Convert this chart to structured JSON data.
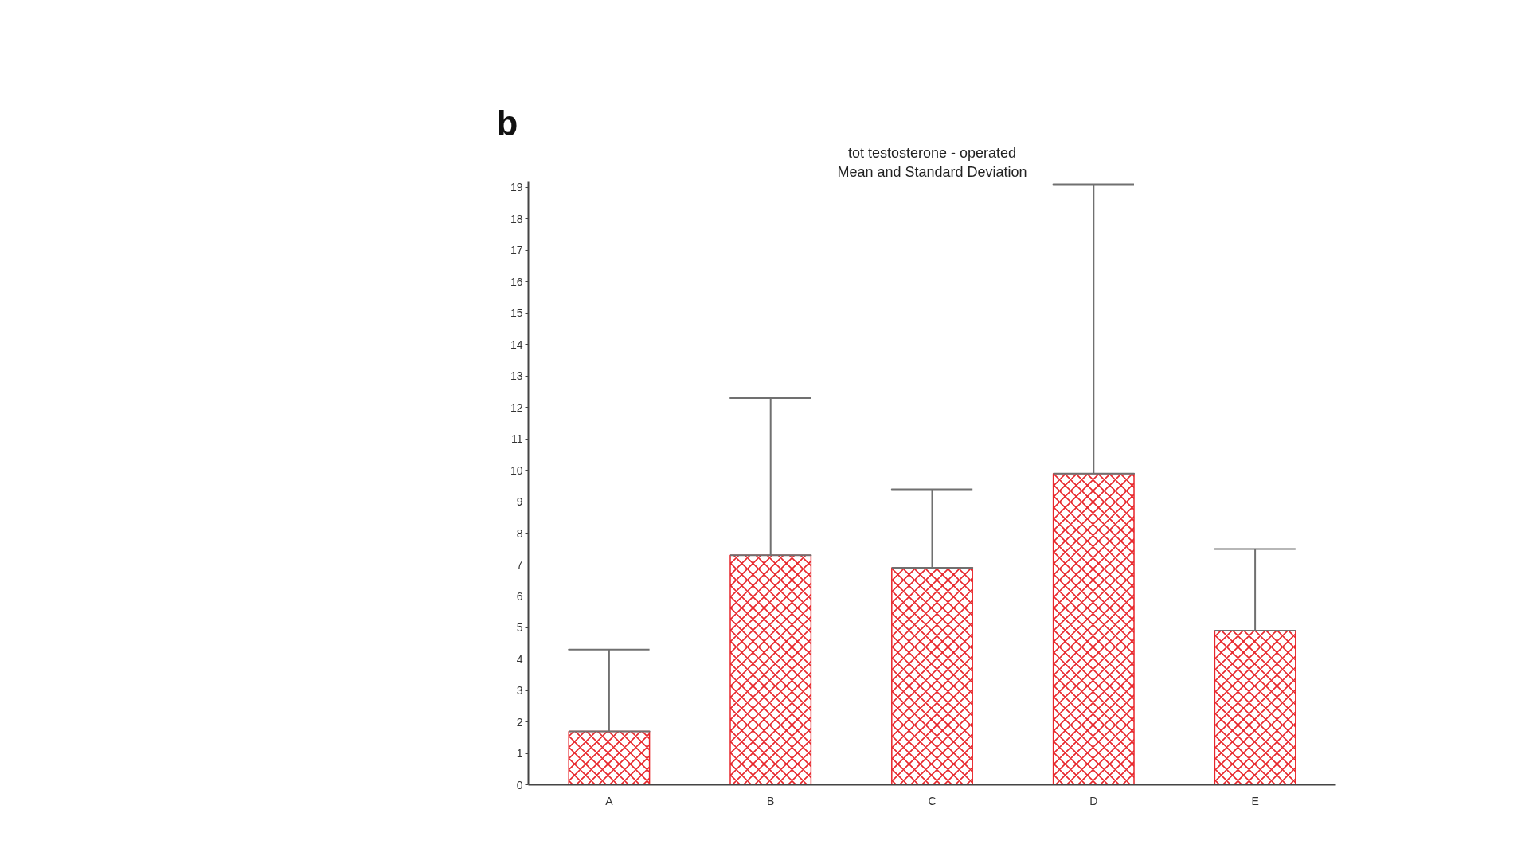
{
  "chart_data": {
    "type": "bar",
    "title": "tot testosterone - operated",
    "subtitle": "Mean and Standard Deviation",
    "annotations": [
      "b"
    ],
    "categories": [
      "A",
      "B",
      "C",
      "D",
      "E"
    ],
    "values": [
      1.7,
      7.3,
      6.9,
      9.9,
      4.9
    ],
    "errors": [
      [
        1.7,
        4.3
      ],
      [
        7.3,
        12.3
      ],
      [
        6.9,
        9.4
      ],
      [
        9.9,
        19.1
      ],
      [
        4.9,
        7.5
      ]
    ],
    "color": "#e8262b",
    "ylim": [
      0,
      19.2
    ],
    "yticks": [
      0,
      1,
      2,
      3,
      4,
      5,
      6,
      7,
      8,
      9,
      10,
      11,
      12,
      13,
      14,
      15,
      16,
      17,
      18,
      19
    ]
  }
}
